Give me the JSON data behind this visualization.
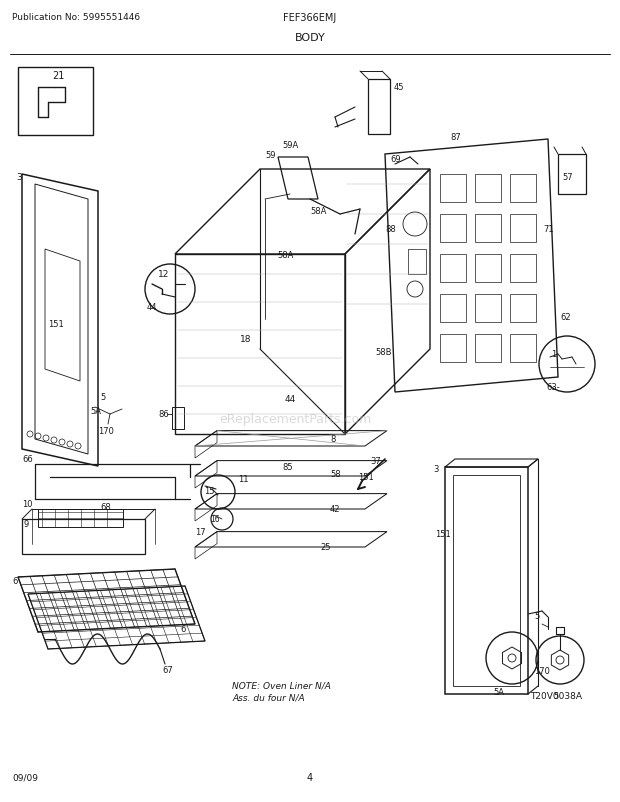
{
  "pub_no": "Publication No: 5995551446",
  "model": "FEF366EMJ",
  "section": "BODY",
  "date": "09/09",
  "page": "4",
  "diagram_id": "T20V0038A",
  "note_line1": "NOTE: Oven Liner N/A",
  "note_line2": "Ass. du four N/A",
  "bg_color": "#ffffff",
  "line_color": "#1a1a1a",
  "text_color": "#1a1a1a",
  "fig_width": 6.2,
  "fig_height": 8.03
}
